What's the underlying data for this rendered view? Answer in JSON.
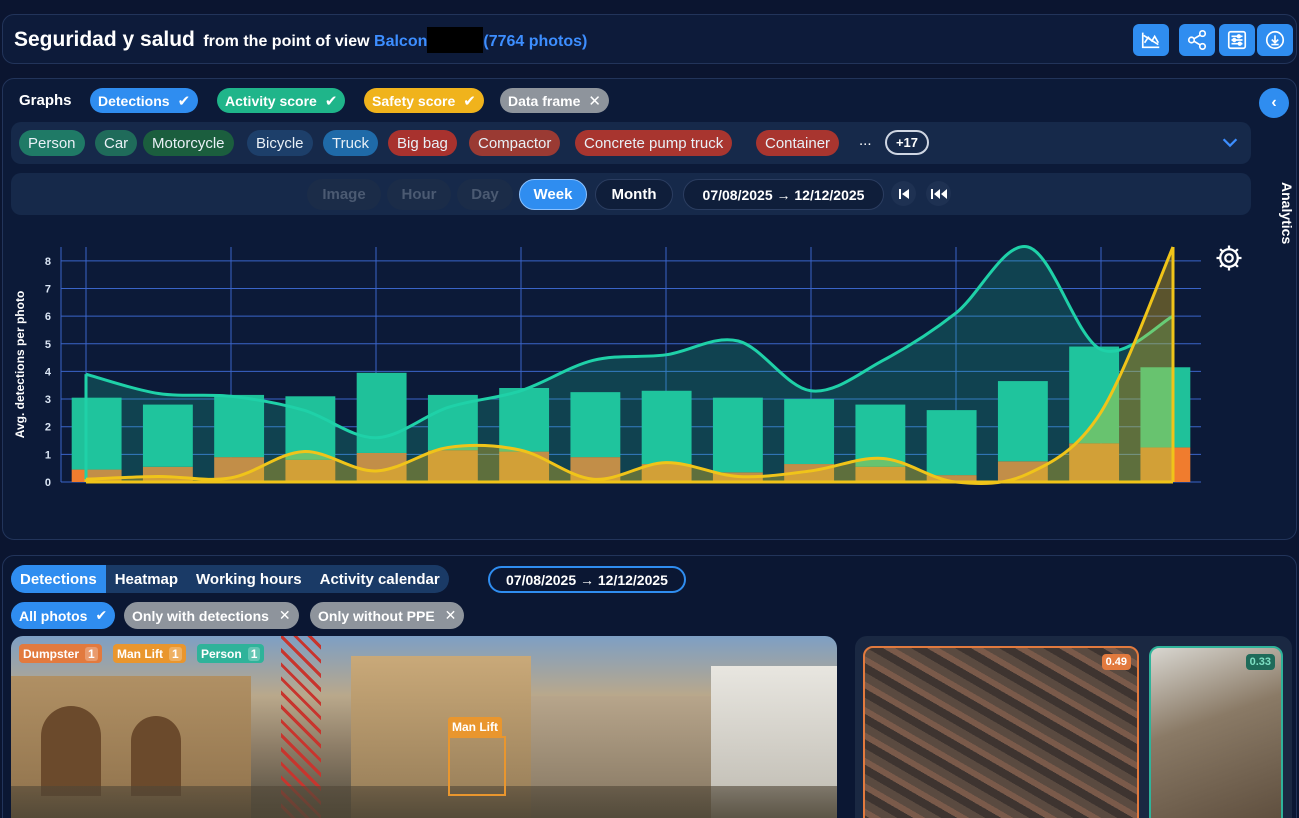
{
  "header": {
    "title": "Seguridad y salud",
    "from_text": "from the point of view",
    "view_name": "Balcon",
    "photo_count": "(7764 photos)",
    "buttons": [
      "chart-trend-icon",
      "share-icon",
      "sliders-icon",
      "download-icon"
    ]
  },
  "graphs": {
    "label": "Graphs",
    "toggles": [
      {
        "label": "Detections",
        "state": "checked",
        "color": "#2f8df0"
      },
      {
        "label": "Activity score",
        "state": "checked",
        "color": "#1fb58a"
      },
      {
        "label": "Safety score",
        "state": "checked",
        "color": "#f0b31c"
      },
      {
        "label": "Data frame",
        "state": "unchecked",
        "color": "#8e949c"
      }
    ],
    "analytics_label": "Analytics",
    "classes": [
      {
        "label": "Person",
        "color": "#1f7a66"
      },
      {
        "label": "Car",
        "color": "#1f6b5a"
      },
      {
        "label": "Motorcycle",
        "color": "#1b5e3e"
      },
      {
        "label": "Bicycle",
        "color": "#1d3f6a"
      },
      {
        "label": "Truck",
        "color": "#1f6aa8"
      },
      {
        "label": "Big bag",
        "color": "#a8322e"
      },
      {
        "label": "Compactor",
        "color": "#9a3a33"
      },
      {
        "label": "Concrete pump truck",
        "color": "#a8352f"
      },
      {
        "label": "Container",
        "color": "#a8352f"
      }
    ],
    "more_dots": "...",
    "more_count": "+17",
    "time_buttons": [
      {
        "label": "Image",
        "state": "disabled"
      },
      {
        "label": "Hour",
        "state": "disabled"
      },
      {
        "label": "Day",
        "state": "disabled"
      },
      {
        "label": "Week",
        "state": "active"
      },
      {
        "label": "Month",
        "state": "normal"
      }
    ],
    "date_range": "07/08/2025 → 12/12/2025"
  },
  "chart_data": {
    "type": "bar",
    "ylabel": "Avg. detections per photo",
    "ylim": [
      0,
      8.5
    ],
    "yticks": [
      0,
      1,
      2,
      3,
      4,
      5,
      6,
      7,
      8
    ],
    "grid": true,
    "weeks": 16,
    "series": [
      {
        "type": "bar",
        "stack": "detections",
        "color": "#f07c2e",
        "values": [
          0.45,
          0.55,
          0.9,
          0.8,
          1.05,
          1.15,
          1.1,
          0.9,
          0.65,
          0.35,
          0.65,
          0.55,
          0.25,
          0.75,
          1.4,
          1.25
        ]
      },
      {
        "type": "bar",
        "stack": "detections",
        "color": "#1fc19a",
        "values": [
          2.6,
          2.25,
          2.25,
          2.3,
          2.9,
          2.0,
          2.3,
          2.35,
          2.65,
          2.7,
          2.35,
          2.25,
          2.35,
          2.9,
          3.5,
          2.9
        ]
      },
      {
        "type": "line",
        "color": "#1fd1a8",
        "fill": true,
        "values": [
          3.9,
          3.2,
          3.1,
          2.6,
          1.6,
          2.7,
          3.3,
          4.4,
          4.6,
          5.1,
          3.3,
          4.4,
          6.1,
          8.5,
          4.8,
          6.0
        ]
      },
      {
        "type": "line",
        "color": "#f0c419",
        "fill": true,
        "values": [
          0.1,
          0.2,
          0.15,
          1.1,
          0.4,
          1.25,
          1.15,
          0.1,
          0.7,
          0.2,
          0.4,
          0.85,
          0.0,
          0.3,
          2.5,
          8.5
        ]
      }
    ]
  },
  "photos": {
    "tabs": [
      {
        "label": "Detections",
        "active": true
      },
      {
        "label": "Heatmap",
        "active": false
      },
      {
        "label": "Working hours",
        "active": false
      },
      {
        "label": "Activity calendar",
        "active": false
      }
    ],
    "date_range": "07/08/2025 → 12/12/2025",
    "filters": [
      {
        "label": "All photos",
        "state": "checked"
      },
      {
        "label": "Only with detections",
        "state": "unchecked"
      },
      {
        "label": "Only without PPE",
        "state": "unchecked"
      }
    ],
    "main_photo_tags": [
      {
        "label": "Dumpster",
        "count": "1",
        "color": "#e27a3e"
      },
      {
        "label": "Man Lift",
        "count": "1",
        "color": "#e9962e"
      },
      {
        "label": "Person",
        "count": "1",
        "color": "#2fb39a"
      }
    ],
    "box_label": "Man Lift",
    "thumbs": [
      {
        "score": "0.49",
        "color": "#e27a3e"
      },
      {
        "score": "0.33",
        "color": "#2fb39a"
      }
    ]
  }
}
